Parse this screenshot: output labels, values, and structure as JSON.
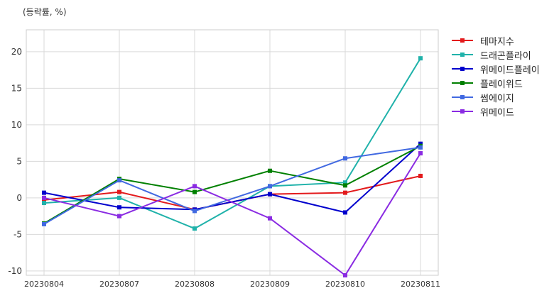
{
  "chart_data": {
    "type": "line",
    "unit_label": "(등락률, %)",
    "categories": [
      "20230804",
      "20230807",
      "20230808",
      "20230809",
      "20230810",
      "20230811"
    ],
    "ylim": [
      -10.6,
      23
    ],
    "yticks": [
      -10,
      -5,
      0,
      5,
      10,
      15,
      20
    ],
    "grid": true,
    "legend_position": "right-top",
    "series": [
      {
        "name": "테마지수",
        "color": "#e31a1c",
        "values": [
          -0.3,
          0.8,
          -1.6,
          0.5,
          0.7,
          3.0
        ]
      },
      {
        "name": "드래곤플라이",
        "color": "#20b2aa",
        "values": [
          -0.7,
          0.0,
          -4.2,
          1.6,
          2.1,
          19.1
        ]
      },
      {
        "name": "위메이드플레이",
        "color": "#0000cd",
        "values": [
          0.7,
          -1.3,
          -1.6,
          0.5,
          -2.0,
          7.4
        ]
      },
      {
        "name": "플레이위드",
        "color": "#008000",
        "values": [
          -3.5,
          2.6,
          0.8,
          3.7,
          1.7,
          7.1
        ]
      },
      {
        "name": "썸에이지",
        "color": "#4169e1",
        "values": [
          -3.6,
          2.4,
          -1.8,
          1.6,
          5.4,
          6.9
        ]
      },
      {
        "name": "위메이드",
        "color": "#8a2be2",
        "values": [
          0.0,
          -2.5,
          1.6,
          -2.8,
          -10.6,
          6.1
        ]
      }
    ]
  }
}
